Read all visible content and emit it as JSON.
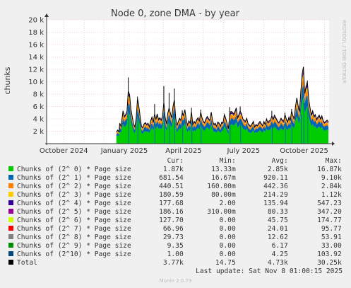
{
  "header": {
    "title": "Node 0, zone DMA - by year",
    "side_label": "RRDTOOL / TOBI OETIKER"
  },
  "chart_data": {
    "type": "area",
    "title": "Node 0, zone DMA - by year",
    "ylabel": "chunks",
    "xlabel": "",
    "ylim": [
      0,
      20000
    ],
    "y_ticks": [
      2000,
      4000,
      6000,
      8000,
      10000,
      12000,
      14000,
      16000,
      18000,
      20000
    ],
    "y_tick_labels": [
      "2 k",
      "4 k",
      "6 k",
      "8 k",
      "10 k",
      "12 k",
      "14 k",
      "16 k",
      "18 k",
      "20 k"
    ],
    "x_range": [
      "2024-09-05",
      "2025-11-08"
    ],
    "x_ticks": [
      "2024-10-01",
      "2025-01-01",
      "2025-04-01",
      "2025-07-01",
      "2025-10-01"
    ],
    "x_tick_labels": [
      "October 2024",
      "January 2025",
      "April 2025",
      "July 2025",
      "October 2025"
    ],
    "grid": true,
    "data_start": "2024-12-20",
    "data_end": "2025-11-08",
    "total_points": [
      [
        0,
        1900
      ],
      [
        2,
        2200
      ],
      [
        4,
        1900
      ],
      [
        5,
        3300
      ],
      [
        7,
        2800
      ],
      [
        10,
        5300
      ],
      [
        12,
        4400
      ],
      [
        14,
        4700
      ],
      [
        16,
        5200
      ],
      [
        18,
        8500
      ],
      [
        20,
        7900
      ],
      [
        22,
        5600
      ],
      [
        24,
        4400
      ],
      [
        26,
        3200
      ],
      [
        28,
        2700
      ],
      [
        30,
        4100
      ],
      [
        32,
        7300
      ],
      [
        34,
        6100
      ],
      [
        36,
        4400
      ],
      [
        38,
        2800
      ],
      [
        40,
        2600
      ],
      [
        42,
        3200
      ],
      [
        44,
        3400
      ],
      [
        46,
        3100
      ],
      [
        48,
        3300
      ],
      [
        50,
        2700
      ],
      [
        52,
        3700
      ],
      [
        54,
        4300
      ],
      [
        56,
        3400
      ],
      [
        58,
        4800
      ],
      [
        60,
        3900
      ],
      [
        62,
        4800
      ],
      [
        64,
        3900
      ],
      [
        66,
        4200
      ],
      [
        68,
        3800
      ],
      [
        70,
        4400
      ],
      [
        72,
        6700
      ],
      [
        74,
        4300
      ],
      [
        76,
        3200
      ],
      [
        78,
        4900
      ],
      [
        80,
        5800
      ],
      [
        82,
        4900
      ],
      [
        84,
        4200
      ],
      [
        86,
        6000
      ],
      [
        88,
        7100
      ],
      [
        90,
        4100
      ],
      [
        92,
        2900
      ],
      [
        94,
        3600
      ],
      [
        96,
        4100
      ],
      [
        98,
        3800
      ],
      [
        100,
        5000
      ],
      [
        102,
        4600
      ],
      [
        104,
        5500
      ],
      [
        106,
        3900
      ],
      [
        108,
        3000
      ],
      [
        110,
        3700
      ],
      [
        112,
        3300
      ],
      [
        114,
        5200
      ],
      [
        116,
        3100
      ],
      [
        118,
        3600
      ],
      [
        120,
        3300
      ],
      [
        122,
        3900
      ],
      [
        124,
        4200
      ],
      [
        126,
        3600
      ],
      [
        128,
        5100
      ],
      [
        130,
        4200
      ],
      [
        132,
        3600
      ],
      [
        134,
        3400
      ],
      [
        136,
        4000
      ],
      [
        138,
        4400
      ],
      [
        140,
        4000
      ],
      [
        142,
        3800
      ],
      [
        144,
        5100
      ],
      [
        146,
        3700
      ],
      [
        148,
        3100
      ],
      [
        150,
        3300
      ],
      [
        152,
        2800
      ],
      [
        154,
        3500
      ],
      [
        156,
        3300
      ],
      [
        158,
        2800
      ],
      [
        160,
        3500
      ],
      [
        162,
        3400
      ],
      [
        164,
        4700
      ],
      [
        166,
        4100
      ],
      [
        168,
        3300
      ],
      [
        170,
        2400
      ],
      [
        172,
        4500
      ],
      [
        174,
        5200
      ],
      [
        176,
        5100
      ],
      [
        178,
        4800
      ],
      [
        180,
        5200
      ],
      [
        182,
        5800
      ],
      [
        184,
        4200
      ],
      [
        186,
        4700
      ],
      [
        188,
        5300
      ],
      [
        190,
        4800
      ],
      [
        192,
        4000
      ],
      [
        194,
        3800
      ],
      [
        196,
        3600
      ],
      [
        198,
        4100
      ],
      [
        200,
        3200
      ],
      [
        202,
        3000
      ],
      [
        204,
        2800
      ],
      [
        206,
        3200
      ],
      [
        208,
        3600
      ],
      [
        210,
        2700
      ],
      [
        212,
        3100
      ],
      [
        214,
        2900
      ],
      [
        216,
        3300
      ],
      [
        218,
        3600
      ],
      [
        220,
        3200
      ],
      [
        222,
        2900
      ],
      [
        224,
        3600
      ],
      [
        226,
        3100
      ],
      [
        228,
        4000
      ],
      [
        230,
        3400
      ],
      [
        232,
        3700
      ],
      [
        234,
        3800
      ],
      [
        236,
        4500
      ],
      [
        238,
        3900
      ],
      [
        240,
        4600
      ],
      [
        242,
        4200
      ],
      [
        244,
        3800
      ],
      [
        246,
        3400
      ],
      [
        248,
        3600
      ],
      [
        250,
        4100
      ],
      [
        252,
        3800
      ],
      [
        254,
        3600
      ],
      [
        256,
        4700
      ],
      [
        258,
        4000
      ],
      [
        260,
        3500
      ],
      [
        262,
        4300
      ],
      [
        264,
        3700
      ],
      [
        266,
        5300
      ],
      [
        268,
        4500
      ],
      [
        270,
        4100
      ],
      [
        272,
        6000
      ],
      [
        274,
        7400
      ],
      [
        276,
        6100
      ],
      [
        278,
        5200
      ],
      [
        280,
        8300
      ],
      [
        282,
        11200
      ],
      [
        284,
        12400
      ],
      [
        286,
        8100
      ],
      [
        288,
        9300
      ],
      [
        290,
        10000
      ],
      [
        292,
        7200
      ],
      [
        294,
        5800
      ],
      [
        296,
        4600
      ],
      [
        298,
        5300
      ],
      [
        300,
        4400
      ],
      [
        302,
        4700
      ],
      [
        304,
        3900
      ],
      [
        306,
        4300
      ],
      [
        308,
        4600
      ],
      [
        310,
        4000
      ],
      [
        312,
        4500
      ],
      [
        314,
        3700
      ],
      [
        316,
        3400
      ],
      [
        318,
        3600
      ],
      [
        320,
        3800
      ],
      [
        322,
        3500
      ]
    ],
    "spikes": [
      [
        18,
        10700
      ],
      [
        32,
        7600
      ],
      [
        58,
        6400
      ],
      [
        72,
        9300
      ],
      [
        80,
        8200
      ],
      [
        88,
        8900
      ],
      [
        100,
        5400
      ],
      [
        114,
        5800
      ],
      [
        128,
        5500
      ],
      [
        172,
        5900
      ],
      [
        188,
        6000
      ],
      [
        236,
        5300
      ],
      [
        256,
        5000
      ],
      [
        266,
        5600
      ],
      [
        280,
        8500
      ],
      [
        284,
        12100
      ],
      [
        290,
        10200
      ]
    ],
    "series": [
      {
        "name": "Chunks of (2^ 0) * Page size",
        "color": "#00cc00",
        "share": 0.6,
        "cur": "1.87k",
        "min": "13.33m",
        "avg": "2.85k",
        "max": "16.87k"
      },
      {
        "name": "Chunks of (2^ 1) * Page size",
        "color": "#0066b3",
        "share": 0.19,
        "cur": "681.54",
        "min": "16.67m",
        "avg": "920.11",
        "max": "9.10k"
      },
      {
        "name": "Chunks of (2^ 2) * Page size",
        "color": "#ff8000",
        "share": 0.09,
        "cur": "440.51",
        "min": "160.00m",
        "avg": "442.36",
        "max": "2.84k"
      },
      {
        "name": "Chunks of (2^ 3) * Page size",
        "color": "#ffcc00",
        "share": 0.045,
        "cur": "180.59",
        "min": "80.00m",
        "avg": "214.29",
        "max": "1.12k"
      },
      {
        "name": "Chunks of (2^ 4) * Page size",
        "color": "#330099",
        "share": 0.03,
        "cur": "177.68",
        "min": "2.00",
        "avg": "135.94",
        "max": "547.23"
      },
      {
        "name": "Chunks of (2^ 5) * Page size",
        "color": "#990099",
        "share": 0.02,
        "cur": "186.16",
        "min": "310.00m",
        "avg": "80.33",
        "max": "347.20"
      },
      {
        "name": "Chunks of (2^ 6) * Page size",
        "color": "#ccff00",
        "share": 0.012,
        "cur": "127.70",
        "min": "0.00",
        "avg": "45.75",
        "max": "174.77"
      },
      {
        "name": "Chunks of (2^ 7) * Page size",
        "color": "#ff0000",
        "share": 0.008,
        "cur": "66.96",
        "min": "0.00",
        "avg": "24.01",
        "max": "95.77"
      },
      {
        "name": "Chunks of (2^ 8) * Page size",
        "color": "#808080",
        "share": 0.004,
        "cur": "29.73",
        "min": "0.00",
        "avg": "12.62",
        "max": "53.91"
      },
      {
        "name": "Chunks of (2^ 9) * Page size",
        "color": "#008f00",
        "share": 0.002,
        "cur": "9.35",
        "min": "0.00",
        "avg": "6.17",
        "max": "33.00"
      },
      {
        "name": "Chunks of (2^10) * Page size",
        "color": "#00487d",
        "share": 0.0015,
        "cur": "1.00",
        "min": "0.00",
        "avg": "4.25",
        "max": "103.92"
      }
    ],
    "total": {
      "name": "Total",
      "color": "#000000",
      "cur": "3.77k",
      "min": "14.75",
      "avg": "4.73k",
      "max": "30.25k"
    }
  },
  "legend_headers": {
    "cur": "Cur:",
    "min": "Min:",
    "avg": "Avg:",
    "max": "Max:"
  },
  "last_update": "Last update: Sat Nov  8 01:00:15 2025",
  "footer": "Munin 2.0.73"
}
